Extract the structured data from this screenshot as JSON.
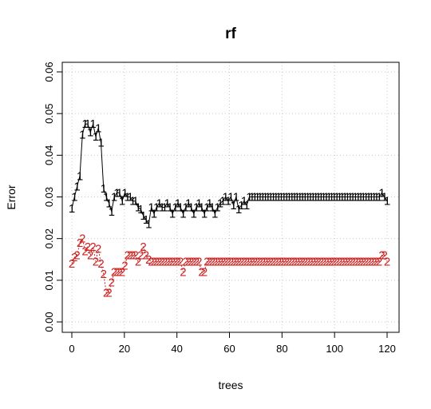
{
  "chart_data": {
    "type": "line",
    "title": "rf",
    "xlabel": "trees",
    "ylabel": "Error",
    "xlim": [
      0,
      120
    ],
    "ylim": [
      0,
      0.06
    ],
    "x_ticks": [
      0,
      20,
      40,
      60,
      80,
      100,
      120
    ],
    "y_ticks": [
      0.0,
      0.01,
      0.02,
      0.03,
      0.04,
      0.05,
      0.06
    ],
    "x_tick_labels": [
      "0",
      "20",
      "40",
      "60",
      "80",
      "100",
      "120"
    ],
    "y_tick_labels": [
      "0.00",
      "0.01",
      "0.02",
      "0.03",
      "0.04",
      "0.05",
      "0.06"
    ],
    "grid": true,
    "series": [
      {
        "marker": "1",
        "color": "#000000",
        "values": [
          0.0272,
          0.03,
          0.0325,
          0.035,
          0.045,
          0.0475,
          0.0475,
          0.0455,
          0.0475,
          0.0445,
          0.0465,
          0.043,
          0.032,
          0.03,
          0.0285,
          0.0265,
          0.03,
          0.031,
          0.031,
          0.029,
          0.031,
          0.03,
          0.03,
          0.029,
          0.029,
          0.0275,
          0.027,
          0.0255,
          0.0245,
          0.0235,
          0.0275,
          0.026,
          0.0275,
          0.0285,
          0.0275,
          0.0275,
          0.0285,
          0.0275,
          0.026,
          0.0275,
          0.0285,
          0.0275,
          0.026,
          0.0275,
          0.0285,
          0.0275,
          0.026,
          0.0275,
          0.0285,
          0.0275,
          0.026,
          0.0275,
          0.0285,
          0.0275,
          0.026,
          0.0275,
          0.0285,
          0.029,
          0.03,
          0.029,
          0.03,
          0.028,
          0.03,
          0.027,
          0.028,
          0.029,
          0.028,
          0.03,
          0.03,
          0.03,
          0.03,
          0.03,
          0.03,
          0.03,
          0.03,
          0.03,
          0.03,
          0.03,
          0.03,
          0.03,
          0.03,
          0.03,
          0.03,
          0.03,
          0.03,
          0.03,
          0.03,
          0.03,
          0.03,
          0.03,
          0.03,
          0.03,
          0.03,
          0.03,
          0.03,
          0.03,
          0.03,
          0.03,
          0.03,
          0.03,
          0.03,
          0.03,
          0.03,
          0.03,
          0.03,
          0.03,
          0.03,
          0.03,
          0.03,
          0.03,
          0.03,
          0.03,
          0.03,
          0.03,
          0.03,
          0.03,
          0.03,
          0.031,
          0.03,
          0.029
        ]
      },
      {
        "marker": "2",
        "color": "#cc2222",
        "values": [
          0.014,
          0.0155,
          0.016,
          0.019,
          0.02,
          0.017,
          0.018,
          0.016,
          0.018,
          0.0145,
          0.0175,
          0.014,
          0.0115,
          0.007,
          0.007,
          0.0095,
          0.012,
          0.012,
          0.012,
          0.012,
          0.0135,
          0.016,
          0.016,
          0.016,
          0.016,
          0.0145,
          0.016,
          0.018,
          0.016,
          0.015,
          0.0145,
          0.0145,
          0.0145,
          0.0145,
          0.0145,
          0.0145,
          0.0145,
          0.0145,
          0.0145,
          0.0145,
          0.0145,
          0.0145,
          0.012,
          0.0145,
          0.0145,
          0.0145,
          0.0145,
          0.0145,
          0.0145,
          0.012,
          0.012,
          0.0145,
          0.0145,
          0.0145,
          0.0145,
          0.0145,
          0.0145,
          0.0145,
          0.0145,
          0.0145,
          0.0145,
          0.0145,
          0.0145,
          0.0145,
          0.0145,
          0.0145,
          0.0145,
          0.0145,
          0.0145,
          0.0145,
          0.0145,
          0.0145,
          0.0145,
          0.0145,
          0.0145,
          0.0145,
          0.0145,
          0.0145,
          0.0145,
          0.0145,
          0.0145,
          0.0145,
          0.0145,
          0.0145,
          0.0145,
          0.0145,
          0.0145,
          0.0145,
          0.0145,
          0.0145,
          0.0145,
          0.0145,
          0.0145,
          0.0145,
          0.0145,
          0.0145,
          0.0145,
          0.0145,
          0.0145,
          0.0145,
          0.0145,
          0.0145,
          0.0145,
          0.0145,
          0.0145,
          0.0145,
          0.0145,
          0.0145,
          0.0145,
          0.0145,
          0.0145,
          0.0145,
          0.0145,
          0.0145,
          0.0145,
          0.0145,
          0.0145,
          0.016,
          0.016,
          0.0145
        ]
      }
    ]
  }
}
